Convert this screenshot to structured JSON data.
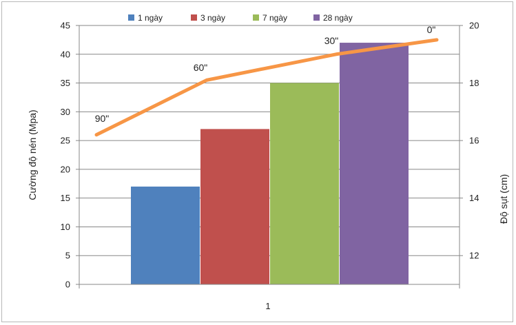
{
  "chart_data": {
    "type": "bar",
    "categories": [
      "1"
    ],
    "series": [
      {
        "name": "1 ngày",
        "values": [
          17
        ],
        "color": "#4f81bd"
      },
      {
        "name": "3 ngày",
        "values": [
          27
        ],
        "color": "#c0504d"
      },
      {
        "name": "7 ngày",
        "values": [
          35
        ],
        "color": "#9bbb59"
      },
      {
        "name": "28 ngày",
        "values": [
          42
        ],
        "color": "#8064a2"
      }
    ],
    "ylabel": "Cường độ nén (Mpa)",
    "ylim": [
      0,
      45
    ],
    "yticks": [
      "0",
      "5",
      "10",
      "15",
      "20",
      "25",
      "30",
      "35",
      "40",
      "45"
    ],
    "y2label": "Độ sụt (cm)",
    "y2lim": [
      11,
      20
    ],
    "y2ticks": [
      "12",
      "14",
      "16",
      "18",
      "20"
    ],
    "legend": "top",
    "grid": true,
    "line": {
      "color": "#f79646",
      "values": [
        16.2,
        18.1,
        19.0,
        19.5
      ],
      "labels": [
        "90\"",
        "60\"",
        "30\"",
        "0\""
      ]
    }
  }
}
